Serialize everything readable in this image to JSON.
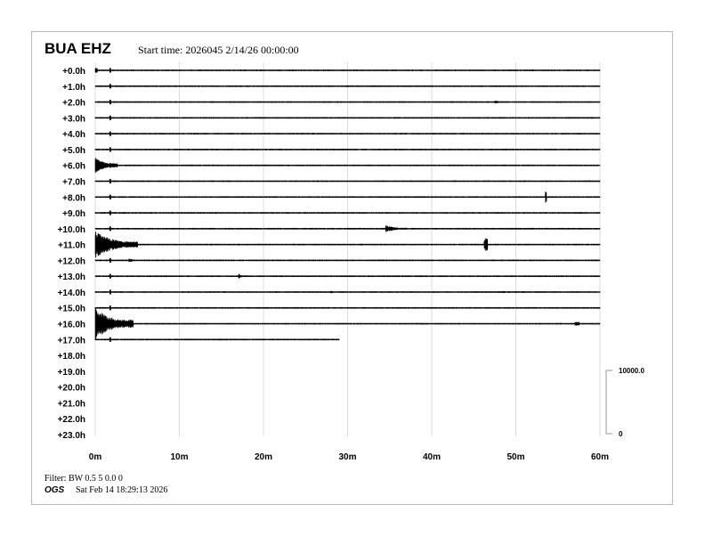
{
  "header": {
    "station": "BUA EHZ",
    "start_time": "Start time: 2026045  2/14/26 00:00:00"
  },
  "footer": {
    "filter": "Filter: BW 0.5 5 0.0 0",
    "org": "OGS",
    "printed": "Sat Feb 14 18:29:13 2026"
  },
  "chart_data": {
    "type": "helicorder",
    "row_labels": [
      "+0.0h",
      "+1.0h",
      "+2.0h",
      "+3.0h",
      "+4.0h",
      "+5.0h",
      "+6.0h",
      "+7.0h",
      "+8.0h",
      "+9.0h",
      "+10.0h",
      "+11.0h",
      "+12.0h",
      "+13.0h",
      "+14.0h",
      "+15.0h",
      "+16.0h",
      "+17.0h",
      "+18.0h",
      "+19.0h",
      "+20.0h",
      "+21.0h",
      "+22.0h",
      "+23.0h"
    ],
    "x_ticks": [
      0,
      10,
      20,
      30,
      40,
      50,
      60
    ],
    "x_tick_labels": [
      "0m",
      "10m",
      "20m",
      "30m",
      "40m",
      "50m",
      "60m"
    ],
    "xlim": [
      0,
      60
    ],
    "grid": true,
    "rows_with_data": 18,
    "last_row_end_minute": 29,
    "noise_amplitude_counts": 120,
    "scale_bar": {
      "min": 0,
      "max": 10000,
      "labels": [
        "10000.0",
        "0"
      ]
    },
    "trace_color": "#000000",
    "events": [
      {
        "row": 0,
        "minute": 0,
        "duration": 0.2,
        "amplitude": 400
      },
      {
        "row": 2,
        "minute": 47.5,
        "duration": 1.5,
        "amplitude": 250
      },
      {
        "row": 6,
        "minute": 0,
        "duration": 2.6,
        "amplitude": 1300
      },
      {
        "row": 8,
        "minute": 53.5,
        "duration": 0.1,
        "amplitude": 1100
      },
      {
        "row": 10,
        "minute": 34.5,
        "duration": 2.5,
        "amplitude": 600
      },
      {
        "row": 11,
        "minute": 0,
        "duration": 5,
        "amplitude": 2100
      },
      {
        "row": 11,
        "minute": 46.2,
        "duration": 0.4,
        "amplitude": 1000
      },
      {
        "row": 12,
        "minute": 4,
        "duration": 2,
        "amplitude": 300
      },
      {
        "row": 13,
        "minute": 17,
        "duration": 0.8,
        "amplitude": 500
      },
      {
        "row": 14,
        "minute": 28,
        "duration": 0.6,
        "amplitude": 250
      },
      {
        "row": 14,
        "minute": 48.5,
        "duration": 1,
        "amplitude": 200
      },
      {
        "row": 16,
        "minute": 0,
        "duration": 4.5,
        "amplitude": 2500
      },
      {
        "row": 16,
        "minute": 57,
        "duration": 0.5,
        "amplitude": 300
      }
    ]
  }
}
